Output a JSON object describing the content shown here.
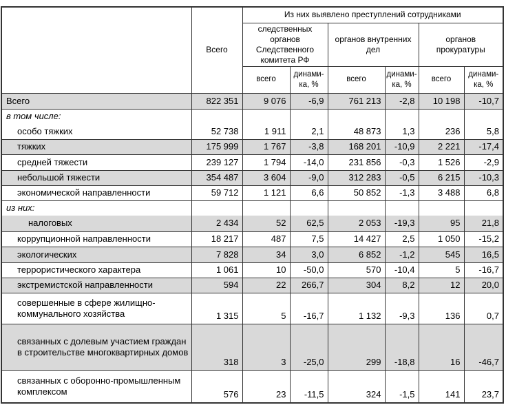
{
  "header": {
    "span_title": "Из них выявлено преступлений сотрудниками",
    "total_column": "Всего",
    "groups": [
      "следственных\nорганов\nСледственного\nкомитета РФ",
      "органов внутренних\nдел",
      "органов\nпрокуратуры"
    ],
    "sub_total": "всего",
    "sub_dynamics": "динами-\nка, %"
  },
  "rows": [
    {
      "label": "Всего",
      "indent": 0,
      "italic": false,
      "shaded": true,
      "section": false,
      "tall": false,
      "values": [
        "822 351",
        "9 076",
        "-6,9",
        "761 213",
        "-2,8",
        "10 198",
        "-10,7"
      ]
    },
    {
      "label": "в том числе:",
      "indent": 0,
      "italic": true,
      "shaded": false,
      "section": true,
      "tall": false,
      "values": null
    },
    {
      "label": "особо тяжких",
      "indent": 1,
      "italic": false,
      "shaded": false,
      "section": false,
      "tall": false,
      "values": [
        "52 738",
        "1 911",
        "2,1",
        "48 873",
        "1,3",
        "236",
        "5,8"
      ]
    },
    {
      "label": "тяжких",
      "indent": 1,
      "italic": false,
      "shaded": true,
      "section": false,
      "tall": false,
      "values": [
        "175 999",
        "1 767",
        "-3,8",
        "168 201",
        "-10,9",
        "2 221",
        "-17,4"
      ]
    },
    {
      "label": "средней тяжести",
      "indent": 1,
      "italic": false,
      "shaded": false,
      "section": false,
      "tall": false,
      "values": [
        "239 127",
        "1 794",
        "-14,0",
        "231 856",
        "-0,3",
        "1 526",
        "-2,9"
      ]
    },
    {
      "label": "небольшой тяжести",
      "indent": 1,
      "italic": false,
      "shaded": true,
      "section": false,
      "tall": false,
      "values": [
        "354 487",
        "3 604",
        "-9,0",
        "312 283",
        "-0,5",
        "6 215",
        "-10,3"
      ]
    },
    {
      "label": "экономической направленности",
      "indent": 1,
      "italic": false,
      "shaded": false,
      "section": false,
      "tall": false,
      "values": [
        "59 712",
        "1 121",
        "6,6",
        "50 852",
        "-1,3",
        "3 488",
        "6,8"
      ]
    },
    {
      "label": "из них:",
      "indent": 0,
      "italic": true,
      "shaded": false,
      "section": true,
      "tall": false,
      "values": null
    },
    {
      "label": "налоговых",
      "indent": 2,
      "italic": false,
      "shaded": true,
      "section": false,
      "tall": false,
      "values": [
        "2 434",
        "52",
        "62,5",
        "2 053",
        "-19,3",
        "95",
        "21,8"
      ]
    },
    {
      "label": "коррупционной направленности",
      "indent": 1,
      "italic": false,
      "shaded": false,
      "section": false,
      "tall": false,
      "values": [
        "18 217",
        "487",
        "7,5",
        "14 427",
        "2,5",
        "1 050",
        "-15,2"
      ]
    },
    {
      "label": "экологических",
      "indent": 1,
      "italic": false,
      "shaded": true,
      "section": false,
      "tall": false,
      "values": [
        "7 828",
        "34",
        "3,0",
        "6 852",
        "-1,2",
        "545",
        "16,5"
      ]
    },
    {
      "label": "террористического характера",
      "indent": 1,
      "italic": false,
      "shaded": false,
      "section": false,
      "tall": false,
      "values": [
        "1 061",
        "10",
        "-50,0",
        "570",
        "-10,4",
        "5",
        "-16,7"
      ]
    },
    {
      "label": "экстремистской направленности",
      "indent": 1,
      "italic": false,
      "shaded": true,
      "section": false,
      "tall": false,
      "values": [
        "594",
        "22",
        "266,7",
        "304",
        "8,2",
        "12",
        "20,0"
      ]
    },
    {
      "label": "совершенные в сфере жилищно-коммунального хозяйства",
      "indent": 1,
      "italic": false,
      "shaded": false,
      "section": false,
      "tall": true,
      "values": [
        "1 315",
        "5",
        "-16,7",
        "1 132",
        "-9,3",
        "136",
        "0,7"
      ]
    },
    {
      "label": "связанных с долевым участием граждан в строительстве многоквартирных домов",
      "indent": 1,
      "italic": false,
      "shaded": true,
      "section": false,
      "tall": true,
      "values": [
        "318",
        "3",
        "-25,0",
        "299",
        "-18,8",
        "16",
        "-46,7"
      ]
    },
    {
      "label": "связанных с оборонно-промышленным комплексом",
      "indent": 1,
      "italic": false,
      "shaded": false,
      "section": false,
      "tall": true,
      "values": [
        "576",
        "23",
        "-11,5",
        "324",
        "-1,5",
        "141",
        "23,7"
      ]
    }
  ],
  "colors": {
    "shaded_row": "#d9d9d9",
    "border": "#333333",
    "text": "#000000"
  }
}
